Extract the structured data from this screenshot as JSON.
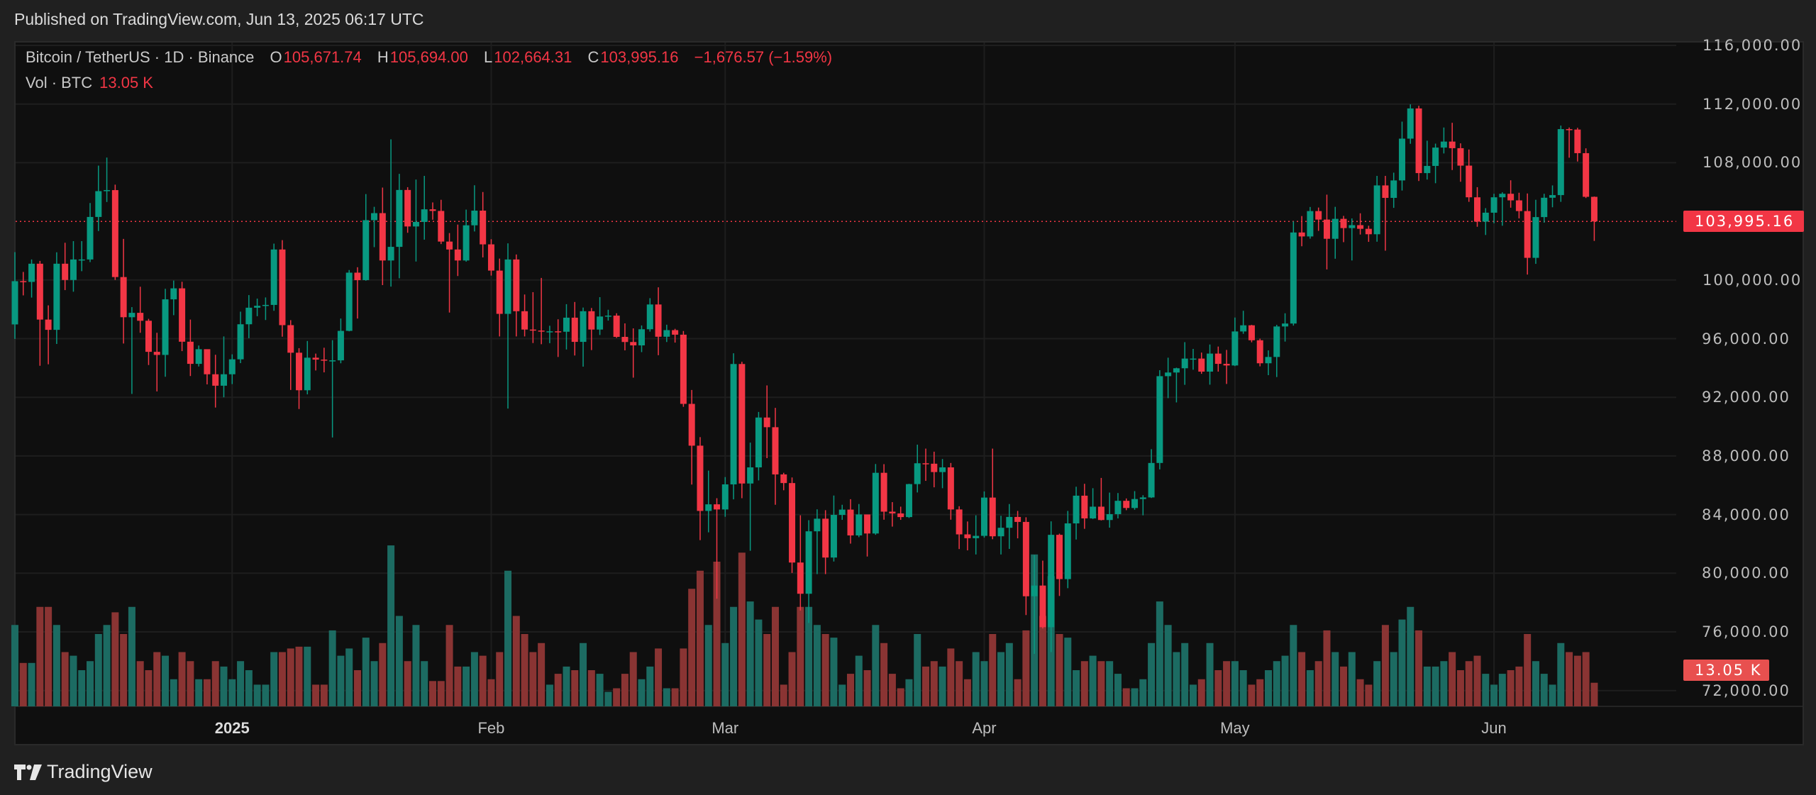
{
  "published": "Published on TradingView.com, Jun 13, 2025 06:17 UTC",
  "legend": {
    "symbol": "Bitcoin / TetherUS · 1D · Binance",
    "o_label": "O",
    "o": "105,671.74",
    "h_label": "H",
    "h": "105,694.00",
    "l_label": "L",
    "l": "102,664.31",
    "c_label": "C",
    "c": "103,995.16",
    "change": "−1,676.57 (−1.59%)",
    "vol_label": "Vol · BTC",
    "vol": "13.05 K"
  },
  "logo": "TradingView",
  "colors": {
    "up": "#089981",
    "down": "#f23645",
    "vol_up": "#1c6b62",
    "vol_down": "#8a3433",
    "grid": "#1e1e1e"
  },
  "chart_data": {
    "type": "candlestick",
    "title": "Bitcoin / TetherUS · 1D · Binance",
    "start_date": "2024-12-06",
    "end_date": "2025-06-13",
    "first_open": 96970,
    "last_open": 105671.74,
    "current_price": 103995.16,
    "current_price_label": "103,995.16",
    "current_volume_label": "13.05 K",
    "ylim": [
      70000,
      116500
    ],
    "yticks": [
      "116,000.00",
      "112,000.00",
      "108,000.00",
      "100,000.00",
      "96,000.00",
      "92,000.00",
      "88,000.00",
      "84,000.00",
      "80,000.00",
      "76,000.00",
      "72,000.00"
    ],
    "ytick_values": [
      116000,
      112000,
      108000,
      100000,
      96000,
      92000,
      88000,
      84000,
      80000,
      76000,
      72000
    ],
    "xticks": [
      {
        "label": "2025",
        "day": 26,
        "year": true
      },
      {
        "label": "Feb",
        "day": 57
      },
      {
        "label": "Mar",
        "day": 85
      },
      {
        "label": "Apr",
        "day": 116
      },
      {
        "label": "May",
        "day": 146
      },
      {
        "label": "Jun",
        "day": 177
      }
    ],
    "high": [
      101900,
      100550,
      101400,
      101300,
      98270,
      101890,
      102540,
      102650,
      102650,
      105250,
      107800,
      108350,
      106500,
      102800,
      98150,
      99540,
      97350,
      96400,
      99400,
      99960,
      99880,
      97300,
      95530,
      95200,
      94900,
      96150,
      94930,
      97840,
      98970,
      98730,
      98810,
      102480,
      102720,
      97260,
      95350,
      95840,
      94980,
      95380,
      95900,
      97370,
      100680,
      100870,
      105860,
      104990,
      106300,
      109590,
      107240,
      106330,
      106850,
      107100,
      105290,
      105470,
      103200,
      103780,
      104800,
      106460,
      106000,
      102780,
      101460,
      102500,
      101740,
      99010,
      99170,
      100140,
      96880,
      97320,
      98350,
      98500,
      98120,
      98090,
      98830,
      97970,
      97730,
      97040,
      96700,
      96900,
      98760,
      99500,
      96950,
      96670,
      96520,
      92500,
      89280,
      87000,
      85120,
      86560,
      95000,
      94420,
      88910,
      91000,
      92810,
      91280,
      86850,
      86530,
      83950,
      83620,
      84360,
      84300,
      85300,
      84670,
      85050,
      84720,
      84000,
      87450,
      87440,
      84850,
      84540,
      86100,
      88770,
      88500,
      88290,
      87790,
      87520,
      84570,
      83530,
      83950,
      85580,
      88500,
      83920,
      84720,
      84250,
      83820,
      81240,
      80860,
      83540,
      82700,
      84250,
      85900,
      86100,
      85800,
      86500,
      85500,
      85470,
      85100,
      85600,
      85320,
      88460,
      93850,
      94700,
      94020,
      95760,
      95300,
      95050,
      95600,
      95460,
      95230,
      97440,
      97900,
      96940,
      96000,
      95200,
      96940,
      97730,
      104000,
      104360,
      104980,
      104940,
      105820,
      104990,
      104370,
      104200,
      104550,
      103700,
      107100,
      107100,
      107320,
      110800,
      111980,
      111880,
      109500,
      109300,
      110400,
      110720,
      109320,
      108900,
      106330,
      104900,
      105880,
      105980,
      106800,
      105950,
      105900,
      105470,
      105880,
      106450,
      110530,
      110400,
      110380,
      108980,
      105694
    ],
    "low": [
      95980,
      98950,
      98800,
      94150,
      94250,
      95640,
      99310,
      99200,
      100600,
      101220,
      103340,
      105320,
      100000,
      95670,
      92230,
      96400,
      94200,
      92400,
      93400,
      97600,
      95150,
      93450,
      94100,
      92880,
      91300,
      92000,
      92900,
      94330,
      96030,
      97530,
      97270,
      97900,
      96130,
      92500,
      91200,
      92200,
      93830,
      93700,
      89260,
      94320,
      96500,
      97370,
      99950,
      102240,
      99650,
      99550,
      100120,
      103220,
      101260,
      102750,
      104110,
      102450,
      97780,
      100270,
      101250,
      103310,
      101540,
      100300,
      96150,
      91230,
      96150,
      96150,
      95700,
      95620,
      95690,
      94750,
      95260,
      94850,
      94090,
      95220,
      96250,
      97230,
      96050,
      95200,
      93340,
      95080,
      96480,
      94870,
      95770,
      95730,
      91350,
      86050,
      82260,
      82790,
      78260,
      83850,
      85040,
      85120,
      81530,
      86330,
      87850,
      84670,
      85660,
      80020,
      77460,
      76610,
      79940,
      79940,
      80800,
      83640,
      82020,
      82460,
      81140,
      82620,
      83650,
      83180,
      83640,
      83770,
      85510,
      86300,
      85860,
      85800,
      83650,
      81650,
      81560,
      81280,
      82430,
      82320,
      81280,
      81660,
      82380,
      77150,
      74500,
      76230,
      74620,
      78450,
      78980,
      82300,
      83030,
      83700,
      83600,
      83110,
      83740,
      84300,
      84330,
      83950,
      85130,
      87080,
      91940,
      91650,
      92850,
      93880,
      93600,
      92860,
      93750,
      92910,
      94130,
      96330,
      95750,
      94110,
      93510,
      93380,
      95800,
      96890,
      102300,
      102820,
      103350,
      100720,
      101450,
      102580,
      101330,
      103100,
      102600,
      102610,
      102000,
      104920,
      106100,
      109290,
      106750,
      106850,
      106600,
      108630,
      107500,
      106700,
      105330,
      103630,
      103070,
      103870,
      103700,
      104930,
      104200,
      100370,
      101100,
      103910,
      104960,
      105330,
      108340,
      108080,
      105590,
      102664.31
    ],
    "close": [
      99920,
      99870,
      101110,
      97300,
      96600,
      101110,
      100000,
      101400,
      101400,
      104300,
      106060,
      106130,
      100200,
      97460,
      97760,
      97220,
      95100,
      94890,
      98680,
      99430,
      95790,
      94280,
      95280,
      93570,
      92790,
      93570,
      94590,
      96980,
      98110,
      98240,
      98300,
      102080,
      96920,
      95040,
      92480,
      94700,
      94570,
      94500,
      94520,
      96530,
      100500,
      99990,
      104080,
      104560,
      101330,
      102260,
      106140,
      103650,
      103960,
      104820,
      104710,
      102620,
      102080,
      101330,
      103730,
      104730,
      102430,
      100640,
      97690,
      101400,
      97870,
      96620,
      96550,
      96480,
      96500,
      96470,
      97430,
      95780,
      97870,
      96620,
      97510,
      97570,
      96120,
      95770,
      95540,
      96640,
      98330,
      96130,
      96580,
      96270,
      91550,
      88700,
      84250,
      84700,
      84350,
      86060,
      94270,
      86120,
      87220,
      90620,
      89960,
      86740,
      86150,
      80730,
      78600,
      82860,
      83720,
      81070,
      83980,
      84340,
      82580,
      84010,
      82710,
      86850,
      84200,
      84080,
      83830,
      86080,
      87500,
      87470,
      86900,
      87220,
      84350,
      82650,
      82390,
      82550,
      85160,
      82520,
      83100,
      83840,
      83500,
      78430,
      79160,
      76320,
      82620,
      79600,
      83400,
      85290,
      83740,
      84540,
      83630,
      84030,
      84940,
      84450,
      85060,
      85170,
      87520,
      93440,
      93690,
      93980,
      94640,
      94640,
      93750,
      94980,
      94280,
      94170,
      96490,
      96910,
      95890,
      94320,
      94750,
      96830,
      97030,
      103240,
      102970,
      104700,
      104120,
      102810,
      104170,
      103540,
      103740,
      103490,
      103120,
      106450,
      105600,
      106790,
      109640,
      111700,
      107290,
      107780,
      109030,
      109440,
      108990,
      107800,
      105640,
      103980,
      104590,
      105640,
      105880,
      105430,
      104700,
      101510,
      104290,
      105610,
      105790,
      110290,
      110260,
      108650,
      105671.74,
      103995.16
    ],
    "volume_k": [
      45,
      24,
      24,
      55,
      55,
      45,
      30,
      28,
      20,
      25,
      40,
      45,
      52,
      40,
      55,
      25,
      20,
      30,
      28,
      15,
      30,
      25,
      15,
      15,
      25,
      22,
      15,
      25,
      20,
      12,
      12,
      30,
      30,
      32,
      33,
      33,
      12,
      12,
      42,
      28,
      32,
      20,
      38,
      25,
      35,
      89,
      50,
      25,
      45,
      25,
      14,
      14,
      45,
      22,
      22,
      30,
      28,
      15,
      30,
      75,
      50,
      40,
      30,
      35,
      12,
      18,
      22,
      20,
      35,
      20,
      18,
      8,
      10,
      18,
      30,
      15,
      22,
      32,
      10,
      10,
      32,
      65,
      75,
      45,
      80,
      35,
      55,
      85,
      58,
      48,
      40,
      55,
      12,
      30,
      55,
      55,
      45,
      40,
      38,
      12,
      18,
      28,
      20,
      45,
      35,
      18,
      10,
      15,
      40,
      22,
      25,
      22,
      32,
      25,
      15,
      30,
      25,
      40,
      30,
      35,
      15,
      42,
      84,
      50,
      72,
      40,
      38,
      20,
      25,
      28,
      25,
      25,
      18,
      10,
      10,
      15,
      35,
      58,
      45,
      30,
      35,
      12,
      15,
      35,
      20,
      25,
      25,
      20,
      12,
      15,
      20,
      25,
      28,
      45,
      30,
      20,
      25,
      42,
      30,
      22,
      30,
      15,
      12,
      25,
      45,
      30,
      48,
      55,
      42,
      22,
      22,
      25,
      30,
      20,
      25,
      28,
      18,
      12,
      18,
      20,
      22,
      40,
      25,
      18,
      12,
      35,
      30,
      28,
      30,
      13.05
    ]
  }
}
